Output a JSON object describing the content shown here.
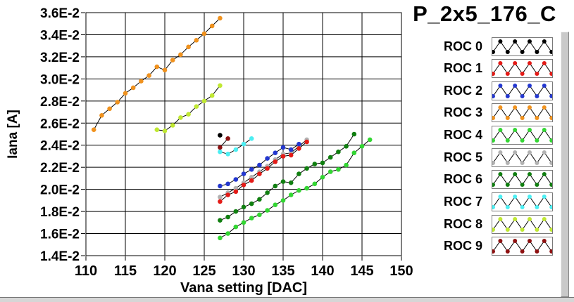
{
  "title": "P_2x5_176_C",
  "chart_data": {
    "type": "line",
    "title": "P_2x5_176_C",
    "xlabel": "Vana setting [DAC]",
    "ylabel": "Iana [A]",
    "x_units": "DAC",
    "y_units": "1E-2 A",
    "xlim": [
      110,
      150
    ],
    "ylim": [
      1.4,
      3.6
    ],
    "grid": true,
    "legend_position": "right",
    "x_ticks": [
      110,
      115,
      120,
      125,
      130,
      135,
      140,
      145,
      150
    ],
    "x_tick_labels": [
      "110",
      "115",
      "120",
      "125",
      "130",
      "135",
      "140",
      "145",
      "150"
    ],
    "y_ticks": [
      1.4,
      1.6,
      1.8,
      2.0,
      2.2,
      2.4,
      2.6,
      2.8,
      3.0,
      3.2,
      3.4,
      3.6
    ],
    "y_tick_labels": [
      "1.4E-2",
      "1.6E-2",
      "1.8E-2",
      "2.0E-2",
      "2.2E-2",
      "2.4E-2",
      "2.6E-2",
      "2.8E-2",
      "3.0E-2",
      "3.2E-2",
      "3.4E-2",
      "3.6E-2"
    ],
    "series": [
      {
        "name": "ROC 0",
        "color": "#000000",
        "x": [
          127
        ],
        "y": [
          2.49
        ]
      },
      {
        "name": "ROC 1",
        "color": "#e41b17",
        "x": [
          127,
          128,
          129,
          130,
          131,
          132,
          133,
          134,
          135,
          136,
          137,
          138
        ],
        "y": [
          1.89,
          1.95,
          1.98,
          2.04,
          2.08,
          2.14,
          2.19,
          2.25,
          2.3,
          2.31,
          2.37,
          2.43
        ]
      },
      {
        "name": "ROC 2",
        "color": "#2438cf",
        "x": [
          127,
          128,
          129,
          130,
          131,
          132,
          133,
          134,
          135,
          136,
          137
        ],
        "y": [
          2.03,
          2.05,
          2.09,
          2.14,
          2.18,
          2.22,
          2.28,
          2.33,
          2.38,
          2.36,
          2.41
        ]
      },
      {
        "name": "ROC 3",
        "color": "#f0921e",
        "x": [
          111,
          112,
          113,
          114,
          115,
          116,
          117,
          118,
          119,
          120,
          121,
          122,
          123,
          124,
          125,
          126,
          127
        ],
        "y": [
          2.54,
          2.67,
          2.73,
          2.79,
          2.87,
          2.92,
          2.98,
          3.03,
          3.11,
          3.08,
          3.17,
          3.22,
          3.29,
          3.35,
          3.41,
          3.48,
          3.55
        ]
      },
      {
        "name": "ROC 4",
        "color": "#33d633",
        "x": [
          127,
          128,
          129,
          130,
          131,
          132,
          133,
          134,
          135,
          136,
          137,
          138,
          139,
          140,
          141,
          142,
          143,
          144,
          145,
          146
        ],
        "y": [
          1.56,
          1.6,
          1.66,
          1.7,
          1.74,
          1.77,
          1.81,
          1.86,
          1.9,
          1.95,
          1.99,
          2.01,
          2.05,
          2.11,
          2.16,
          2.18,
          2.22,
          2.33,
          2.39,
          2.45
        ]
      },
      {
        "name": "ROC 5",
        "color": "#b2b2b2",
        "x": [
          127,
          128,
          129,
          130,
          131,
          132,
          133,
          134,
          135,
          136,
          137,
          138
        ],
        "y": [
          1.93,
          1.97,
          2.01,
          2.06,
          2.11,
          2.16,
          2.21,
          2.27,
          2.32,
          2.33,
          2.39,
          2.45
        ]
      },
      {
        "name": "ROC 6",
        "color": "#107f10",
        "x": [
          127,
          128,
          129,
          130,
          131,
          132,
          133,
          134,
          135,
          136,
          137,
          138,
          139,
          140,
          141,
          142,
          143,
          144
        ],
        "y": [
          1.72,
          1.75,
          1.8,
          1.84,
          1.87,
          1.91,
          1.97,
          2.03,
          2.07,
          2.06,
          2.14,
          2.19,
          2.23,
          2.24,
          2.29,
          2.34,
          2.39,
          2.5
        ]
      },
      {
        "name": "ROC 7",
        "color": "#4ceef2",
        "x": [
          127,
          128,
          129,
          130,
          131
        ],
        "y": [
          2.34,
          2.32,
          2.36,
          2.41,
          2.46
        ]
      },
      {
        "name": "ROC 8",
        "color": "#c0e832",
        "x": [
          119,
          120,
          121,
          122,
          123,
          124,
          125,
          126,
          127
        ],
        "y": [
          2.54,
          2.53,
          2.58,
          2.65,
          2.68,
          2.75,
          2.8,
          2.85,
          2.94
        ]
      },
      {
        "name": "ROC 9",
        "color": "#8e1111",
        "x": [
          127,
          128
        ],
        "y": [
          2.38,
          2.46
        ]
      }
    ]
  },
  "legend": {
    "items": [
      {
        "label": "ROC 0"
      },
      {
        "label": "ROC 1"
      },
      {
        "label": "ROC 2"
      },
      {
        "label": "ROC 3"
      },
      {
        "label": "ROC 4"
      },
      {
        "label": "ROC 5"
      },
      {
        "label": "ROC 6"
      },
      {
        "label": "ROC 7"
      },
      {
        "label": "ROC 8"
      },
      {
        "label": "ROC 9"
      }
    ]
  }
}
